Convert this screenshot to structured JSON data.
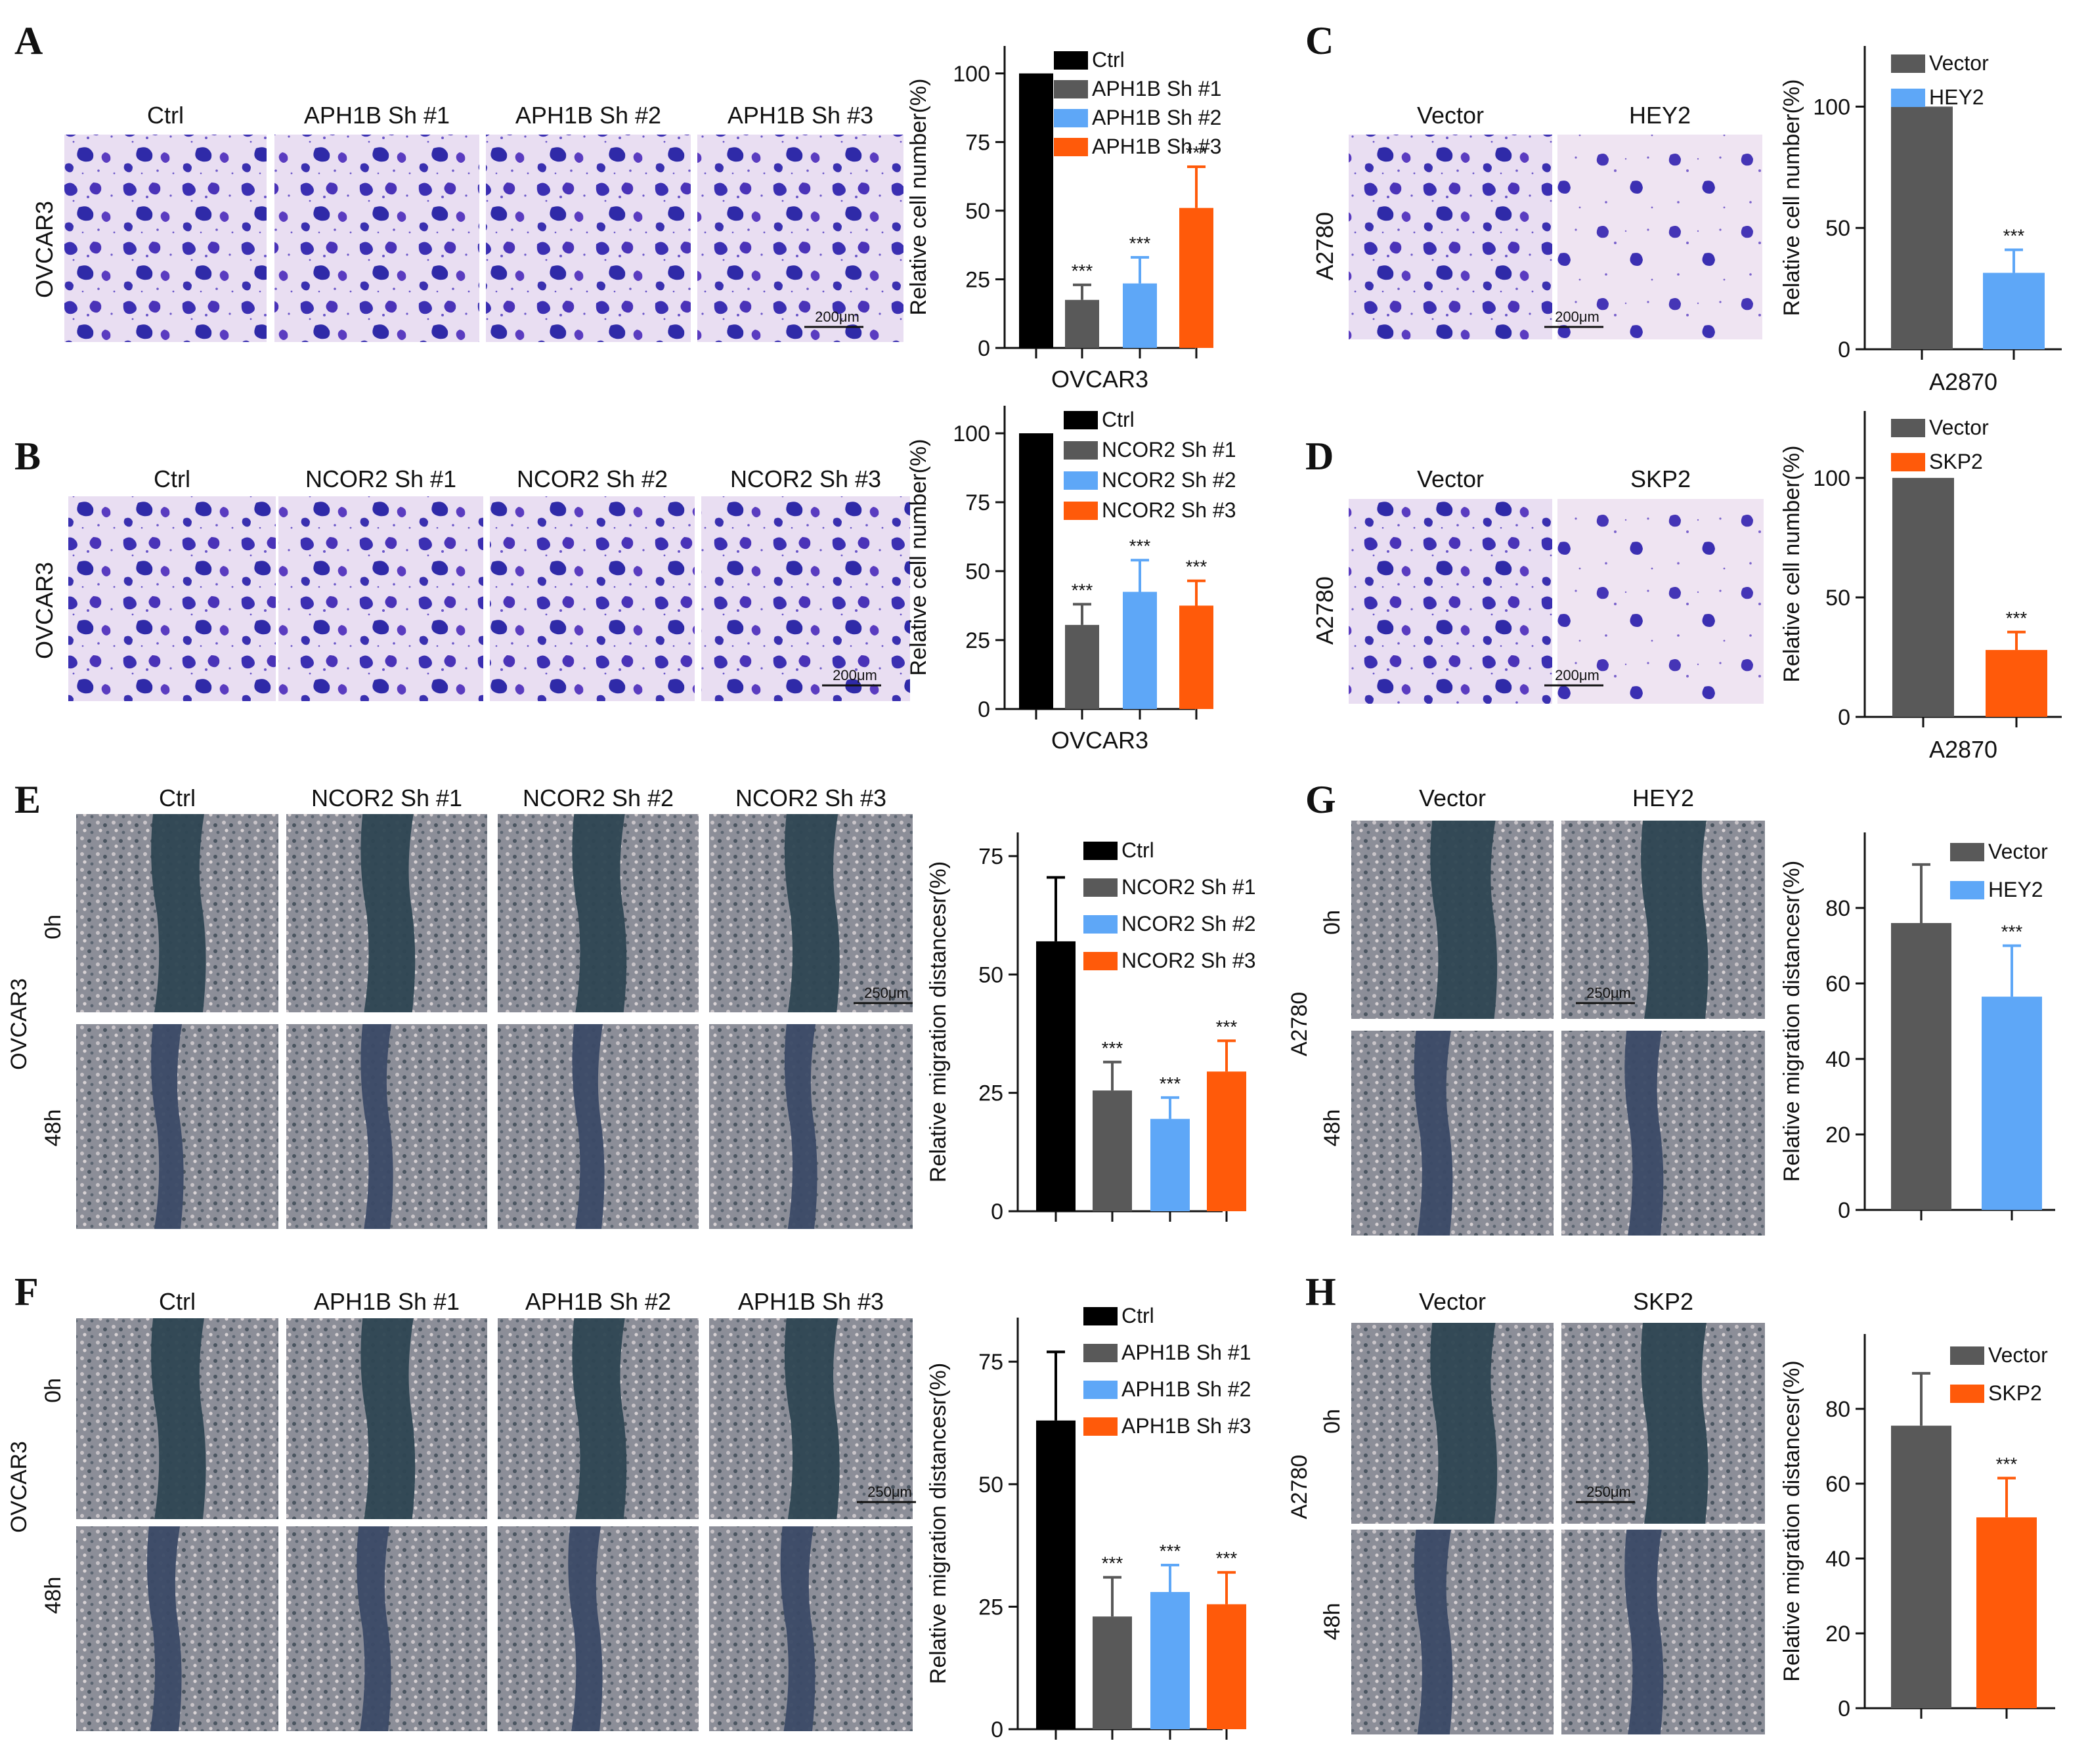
{
  "colors": {
    "black": "#000000",
    "gray": "#595959",
    "blue": "#5ea7f7",
    "orange": "#ff5a0a",
    "transwell_bg": "#e6dcf0",
    "transwell_cell": "#3a2fb0",
    "wound_bg": "#8f8f9a",
    "wound_gap": "#2f4a58"
  },
  "panels": {
    "A": {
      "letter": "A",
      "row_label": "OVCAR3",
      "image_labels": [
        "Ctrl",
        "APH1B Sh #1",
        "APH1B Sh #2",
        "APH1B Sh #3"
      ],
      "scale_bar": "200μm"
    },
    "B": {
      "letter": "B",
      "row_label": "OVCAR3",
      "image_labels": [
        "Ctrl",
        "NCOR2 Sh #1",
        "NCOR2 Sh #2",
        "NCOR2 Sh #3"
      ],
      "scale_bar": "200μm"
    },
    "C": {
      "letter": "C",
      "row_label": "A2780",
      "image_labels": [
        "Vector",
        "HEY2"
      ],
      "scale_bar": "200μm"
    },
    "D": {
      "letter": "D",
      "row_label": "A2780",
      "image_labels": [
        "Vector",
        "SKP2"
      ],
      "scale_bar": "200μm"
    },
    "E": {
      "letter": "E",
      "row_label": "OVCAR3",
      "time_labels": [
        "0h",
        "48h"
      ],
      "image_labels": [
        "Ctrl",
        "NCOR2 Sh #1",
        "NCOR2 Sh #2",
        "NCOR2 Sh #3"
      ],
      "scale_bar": "250μm"
    },
    "F": {
      "letter": "F",
      "row_label": "OVCAR3",
      "time_labels": [
        "0h",
        "48h"
      ],
      "image_labels": [
        "Ctrl",
        "APH1B Sh #1",
        "APH1B Sh #2",
        "APH1B Sh #3"
      ],
      "scale_bar": "250μm"
    },
    "G": {
      "letter": "G",
      "row_label": "A2780",
      "time_labels": [
        "0h",
        "48h"
      ],
      "image_labels": [
        "Vector",
        "HEY2"
      ],
      "scale_bar": "250μm"
    },
    "H": {
      "letter": "H",
      "row_label": "A2780",
      "time_labels": [
        "0h",
        "48h"
      ],
      "image_labels": [
        "Vector",
        "SKP2"
      ],
      "scale_bar": "250μm"
    }
  },
  "chart_data": [
    {
      "panel": "A",
      "type": "bar",
      "title": "",
      "xlabel": "OVCAR3",
      "ylabel": "Relative cell number(%)",
      "ylim": [
        0,
        110
      ],
      "yticks": [
        0,
        25,
        50,
        75,
        100
      ],
      "legend": "top-right",
      "series": [
        {
          "name": "Ctrl",
          "value": 100,
          "error": 0,
          "sig": "",
          "color": "#000000"
        },
        {
          "name": "APH1B Sh #1",
          "value": 17.5,
          "error": 5.5,
          "sig": "***",
          "color": "#595959"
        },
        {
          "name": "APH1B Sh #2",
          "value": 23.5,
          "error": 9.5,
          "sig": "***",
          "color": "#5ea7f7"
        },
        {
          "name": "APH1B Sh #3",
          "value": 51,
          "error": 15,
          "sig": "***",
          "color": "#ff5a0a"
        }
      ]
    },
    {
      "panel": "B",
      "type": "bar",
      "title": "",
      "xlabel": "OVCAR3",
      "ylabel": "Relative cell number(%)",
      "ylim": [
        0,
        110
      ],
      "yticks": [
        0,
        25,
        50,
        75,
        100
      ],
      "legend": "top-right",
      "series": [
        {
          "name": "Ctrl",
          "value": 100,
          "error": 0,
          "sig": "",
          "color": "#000000"
        },
        {
          "name": "NCOR2 Sh #1",
          "value": 30.5,
          "error": 7.5,
          "sig": "***",
          "color": "#595959"
        },
        {
          "name": "NCOR2 Sh #2",
          "value": 42.5,
          "error": 11.5,
          "sig": "***",
          "color": "#5ea7f7"
        },
        {
          "name": "NCOR2 Sh #3",
          "value": 37.5,
          "error": 9,
          "sig": "***",
          "color": "#ff5a0a"
        }
      ]
    },
    {
      "panel": "C",
      "type": "bar",
      "title": "",
      "xlabel": "A2870",
      "ylabel": "Relative cell number(%)",
      "ylim": [
        0,
        125
      ],
      "yticks": [
        0,
        50,
        100
      ],
      "legend": "top-left",
      "series": [
        {
          "name": "Vector",
          "value": 100,
          "error": 0,
          "sig": "",
          "color": "#595959"
        },
        {
          "name": "HEY2",
          "value": 31.5,
          "error": 9.5,
          "sig": "***",
          "color": "#5ea7f7"
        }
      ]
    },
    {
      "panel": "D",
      "type": "bar",
      "title": "",
      "xlabel": "A2870",
      "ylabel": "Relative cell number(%)",
      "ylim": [
        0,
        128
      ],
      "yticks": [
        0,
        50,
        100
      ],
      "legend": "top-left",
      "series": [
        {
          "name": "Vector",
          "value": 100,
          "error": 0,
          "sig": "",
          "color": "#595959"
        },
        {
          "name": "SKP2",
          "value": 28,
          "error": 7.5,
          "sig": "***",
          "color": "#ff5a0a"
        }
      ]
    },
    {
      "panel": "E",
      "type": "bar",
      "title": "",
      "xlabel": "",
      "ylabel": "Relative migration distancesr(%)",
      "ylim": [
        0,
        80
      ],
      "yticks": [
        0,
        25,
        50,
        75
      ],
      "legend": "top-right",
      "series": [
        {
          "name": "Ctrl",
          "value": 57,
          "error": 13.5,
          "sig": "",
          "color": "#000000"
        },
        {
          "name": "NCOR2 Sh #1",
          "value": 25.5,
          "error": 6,
          "sig": "***",
          "color": "#595959"
        },
        {
          "name": "NCOR2 Sh #2",
          "value": 19.5,
          "error": 4.5,
          "sig": "***",
          "color": "#5ea7f7"
        },
        {
          "name": "NCOR2 Sh #3",
          "value": 29.5,
          "error": 6.5,
          "sig": "***",
          "color": "#ff5a0a"
        }
      ]
    },
    {
      "panel": "F",
      "type": "bar",
      "title": "",
      "xlabel": "",
      "ylabel": "Relative migration distancesr(%)",
      "ylim": [
        0,
        84
      ],
      "yticks": [
        0,
        25,
        50,
        75
      ],
      "ytick_labels": [
        "0",
        "25",
        "50",
        "75"
      ],
      "legend": "top-right",
      "series": [
        {
          "name": "Ctrl",
          "value": 63,
          "error": 14,
          "sig": "",
          "color": "#000000"
        },
        {
          "name": "APH1B Sh #1",
          "value": 23,
          "error": 8,
          "sig": "***",
          "color": "#595959"
        },
        {
          "name": "APH1B Sh #2",
          "value": 28,
          "error": 5.5,
          "sig": "***",
          "color": "#5ea7f7"
        },
        {
          "name": "APH1B Sh #3",
          "value": 25.5,
          "error": 6.5,
          "sig": "***",
          "color": "#ff5a0a"
        }
      ]
    },
    {
      "panel": "G",
      "type": "bar",
      "title": "",
      "xlabel": "",
      "ylabel": "Relative migration distancesr(%)",
      "ylim": [
        0,
        100
      ],
      "yticks": [
        0,
        20,
        40,
        60,
        80
      ],
      "legend": "top-right",
      "series": [
        {
          "name": "Vector",
          "value": 76,
          "error": 15.5,
          "sig": "",
          "color": "#595959"
        },
        {
          "name": "HEY2",
          "value": 56.5,
          "error": 13.5,
          "sig": "***",
          "color": "#5ea7f7"
        }
      ]
    },
    {
      "panel": "H",
      "type": "bar",
      "title": "",
      "xlabel": "",
      "ylabel": "Relative migration distancesr(%)",
      "ylim": [
        0,
        100
      ],
      "yticks": [
        0,
        20,
        40,
        60,
        80
      ],
      "legend": "top-right",
      "series": [
        {
          "name": "Vector",
          "value": 75.5,
          "error": 14,
          "sig": "",
          "color": "#595959"
        },
        {
          "name": "SKP2",
          "value": 51,
          "error": 10.5,
          "sig": "***",
          "color": "#ff5a0a"
        }
      ]
    }
  ]
}
